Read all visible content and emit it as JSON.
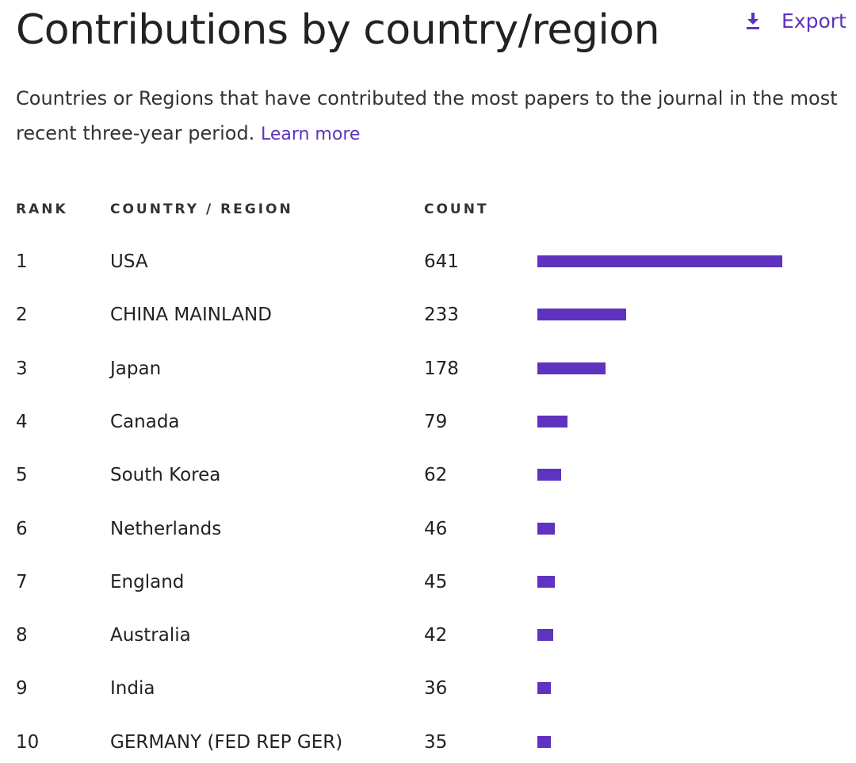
{
  "header": {
    "title": "Contributions by country/region",
    "export_label": "Export",
    "export_icon": "download-icon"
  },
  "description": {
    "text": "Countries or Regions that have contributed the most papers to the journal in the most recent three-year period.",
    "link_label": "Learn more"
  },
  "colors": {
    "accent": "#5e33bf",
    "bar": "#5e33bf"
  },
  "chart_data": {
    "type": "bar",
    "orientation": "horizontal",
    "columns": [
      "RANK",
      "COUNTRY / REGION",
      "COUNT"
    ],
    "rows": [
      {
        "rank": "1",
        "country": "USA",
        "count": 641
      },
      {
        "rank": "2",
        "country": "CHINA MAINLAND",
        "count": 233
      },
      {
        "rank": "3",
        "country": "Japan",
        "count": 178
      },
      {
        "rank": "4",
        "country": "Canada",
        "count": 79
      },
      {
        "rank": "5",
        "country": "South Korea",
        "count": 62
      },
      {
        "rank": "6",
        "country": "Netherlands",
        "count": 46
      },
      {
        "rank": "7",
        "country": "England",
        "count": 45
      },
      {
        "rank": "8",
        "country": "Australia",
        "count": 42
      },
      {
        "rank": "9",
        "country": "India",
        "count": 36
      },
      {
        "rank": "10",
        "country": "GERMANY (FED REP GER)",
        "count": 35
      }
    ],
    "xlim": [
      0,
      641
    ],
    "grid": false,
    "legend": "none"
  }
}
